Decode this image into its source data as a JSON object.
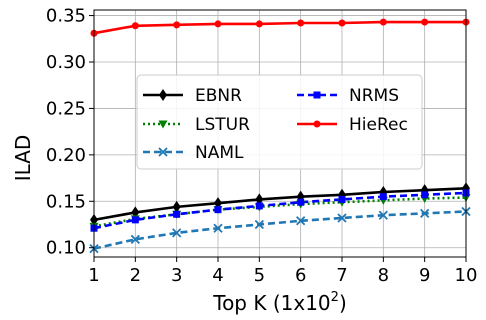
{
  "chart_data": {
    "type": "line",
    "title": "",
    "xlabel": "Top K (1x10",
    "xlabel_sup": "2",
    "xlabel_suffix": ")",
    "ylabel": "ILAD",
    "xlim": [
      1,
      10
    ],
    "ylim": [
      0.09,
      0.356
    ],
    "xticks": [
      "1",
      "2",
      "3",
      "4",
      "5",
      "6",
      "7",
      "8",
      "9",
      "10"
    ],
    "yticks": [
      "0.10",
      "0.15",
      "0.20",
      "0.25",
      "0.30",
      "0.35"
    ],
    "grid": true,
    "legend_placement": "center",
    "x": [
      1,
      2,
      3,
      4,
      5,
      6,
      7,
      8,
      9,
      10
    ],
    "series": [
      {
        "name": "EBNR",
        "color": "#000000",
        "dash": "solid",
        "marker": "diamond",
        "values": [
          0.13,
          0.138,
          0.144,
          0.148,
          0.152,
          0.155,
          0.157,
          0.16,
          0.162,
          0.164
        ]
      },
      {
        "name": "LSTUR",
        "color": "#008000",
        "dash": "dotted",
        "marker": "triangle-down",
        "values": [
          0.123,
          0.131,
          0.136,
          0.141,
          0.144,
          0.147,
          0.149,
          0.151,
          0.153,
          0.154
        ]
      },
      {
        "name": "NAML",
        "color": "#1f77b4",
        "dash": "dashed",
        "marker": "x",
        "values": [
          0.099,
          0.109,
          0.116,
          0.121,
          0.125,
          0.129,
          0.132,
          0.135,
          0.137,
          0.139
        ]
      },
      {
        "name": "NRMS",
        "color": "#0000ff",
        "dash": "dashed",
        "marker": "square",
        "values": [
          0.121,
          0.13,
          0.136,
          0.141,
          0.145,
          0.149,
          0.152,
          0.155,
          0.157,
          0.159
        ]
      },
      {
        "name": "HieRec",
        "color": "#ff0000",
        "dash": "solid",
        "marker": "circle",
        "values": [
          0.331,
          0.339,
          0.34,
          0.341,
          0.341,
          0.342,
          0.342,
          0.343,
          0.343,
          0.343
        ]
      }
    ]
  }
}
